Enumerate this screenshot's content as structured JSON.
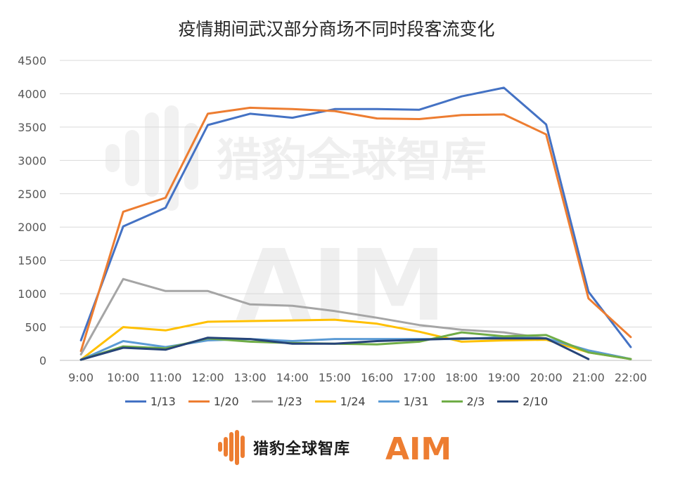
{
  "chart_data": {
    "type": "line",
    "title": "疫情期间武汉部分商场不同时段客流变化",
    "categories": [
      "9:00",
      "10:00",
      "11:00",
      "12:00",
      "13:00",
      "14:00",
      "15:00",
      "16:00",
      "17:00",
      "18:00",
      "19:00",
      "20:00",
      "21:00",
      "22:00"
    ],
    "yticks": [
      "0",
      "500",
      "1000",
      "1500",
      "2000",
      "2500",
      "3000",
      "3500",
      "4000",
      "4500"
    ],
    "ylim": [
      0,
      4500
    ],
    "grid": true,
    "legend_position": "bottom",
    "series": [
      {
        "name": "1/13",
        "color": "#4472C4",
        "values": [
          300,
          2010,
          2290,
          3530,
          3700,
          3640,
          3770,
          3770,
          3760,
          3960,
          4090,
          3540,
          1030,
          200
        ]
      },
      {
        "name": "1/20",
        "color": "#ED7D31",
        "values": [
          140,
          2230,
          2440,
          3700,
          3790,
          3770,
          3740,
          3630,
          3620,
          3680,
          3690,
          3390,
          930,
          350
        ]
      },
      {
        "name": "1/23",
        "color": "#A5A5A5",
        "values": [
          90,
          1220,
          1040,
          1040,
          840,
          820,
          740,
          640,
          530,
          460,
          420,
          330,
          150,
          20
        ]
      },
      {
        "name": "1/24",
        "color": "#FFC000",
        "values": [
          10,
          500,
          450,
          580,
          590,
          600,
          610,
          550,
          430,
          280,
          300,
          310,
          120,
          20
        ]
      },
      {
        "name": "1/31",
        "color": "#5B9BD5",
        "values": [
          10,
          290,
          200,
          300,
          320,
          290,
          320,
          320,
          320,
          320,
          350,
          330,
          150,
          20
        ]
      },
      {
        "name": "2/3",
        "color": "#70AD47",
        "values": [
          10,
          210,
          180,
          330,
          280,
          260,
          250,
          240,
          280,
          420,
          360,
          380,
          120,
          20
        ]
      },
      {
        "name": "2/10",
        "color": "#264478",
        "values": [
          10,
          190,
          160,
          340,
          320,
          250,
          250,
          290,
          310,
          330,
          330,
          330,
          20,
          null
        ]
      }
    ]
  },
  "watermark": {
    "brand_text": "猎豹全球智库",
    "aim_text": "AIM"
  },
  "footer": {
    "brand_text": "猎豹全球智库",
    "aim_text": "AIM",
    "brand_color": "#ED7D31"
  }
}
